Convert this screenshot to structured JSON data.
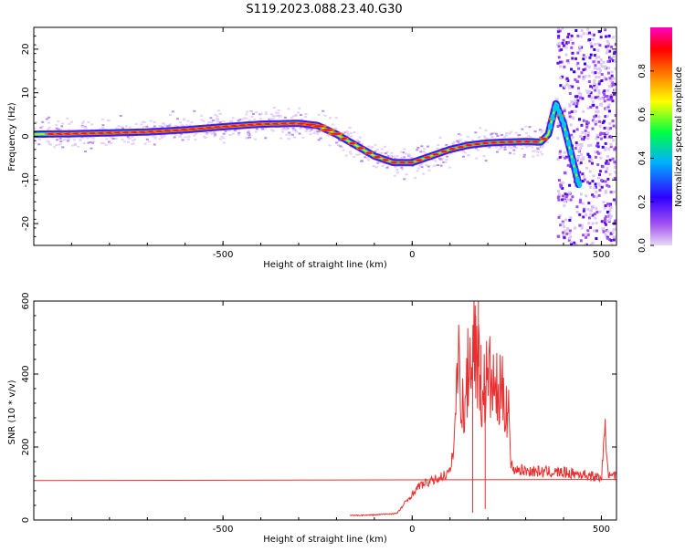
{
  "figure_title": "S119.2023.088.23.40.G30",
  "chart_data": [
    {
      "type": "heatmap",
      "title": "",
      "xlabel": "Height of straight line (km)",
      "ylabel": "Frequency (Hz)",
      "xlim": [
        -1000,
        540
      ],
      "ylim": [
        -25,
        25
      ],
      "xticks": [
        -500,
        0,
        500
      ],
      "yticks": [
        -20,
        -10,
        0,
        10,
        20
      ],
      "colorbar": {
        "label": "Normalized spectral amplitude",
        "range": [
          0,
          1
        ],
        "ticks": [
          0.0,
          0.2,
          0.4,
          0.6,
          0.8
        ],
        "colormap": [
          "#e8d8f5",
          "#a050f0",
          "#3000ff",
          "#00b0ff",
          "#00ff40",
          "#ffff00",
          "#ff8000",
          "#ff0000",
          "#ff00c0"
        ]
      },
      "ridge": {
        "x": [
          -1000,
          -900,
          -800,
          -700,
          -600,
          -500,
          -400,
          -300,
          -250,
          -200,
          -150,
          -100,
          -50,
          0,
          50,
          100,
          150,
          200,
          250,
          300,
          340,
          360,
          380,
          400,
          420,
          440
        ],
        "y": [
          0.5,
          0.6,
          0.8,
          1.0,
          1.5,
          2.2,
          2.8,
          3.0,
          2.5,
          0.5,
          -2.0,
          -4.5,
          -6.0,
          -6.0,
          -4.5,
          -3.0,
          -2.0,
          -1.5,
          -1.3,
          -1.2,
          -1.3,
          0.5,
          7.5,
          3.0,
          -4.0,
          -11.0
        ]
      },
      "noise_region": {
        "x_start": 385,
        "x_end": 540
      }
    },
    {
      "type": "line",
      "title": "",
      "xlabel": "Height of straight line (km)",
      "ylabel": "SNR (10 * v/v)",
      "xlim": [
        -1000,
        540
      ],
      "ylim": [
        0,
        600
      ],
      "xticks": [
        -500,
        0,
        500
      ],
      "yticks": [
        0,
        200,
        400,
        600
      ],
      "reference_line": {
        "value_start": 108,
        "value_end": 111,
        "color": "#e83030"
      },
      "series": [
        {
          "color": "#e83030",
          "x": [
            -165,
            -100,
            -40,
            -20,
            0,
            20,
            60,
            100,
            110,
            118,
            125,
            135,
            150,
            165,
            175,
            185,
            200,
            220,
            240,
            255,
            260,
            270,
            300,
            350,
            400,
            450,
            500,
            510,
            520,
            540
          ],
          "y": [
            12,
            14,
            18,
            45,
            70,
            95,
            110,
            130,
            200,
            370,
            450,
            280,
            430,
            500,
            420,
            330,
            400,
            350,
            340,
            320,
            150,
            140,
            135,
            132,
            130,
            125,
            115,
            250,
            118,
            120
          ]
        }
      ]
    }
  ]
}
